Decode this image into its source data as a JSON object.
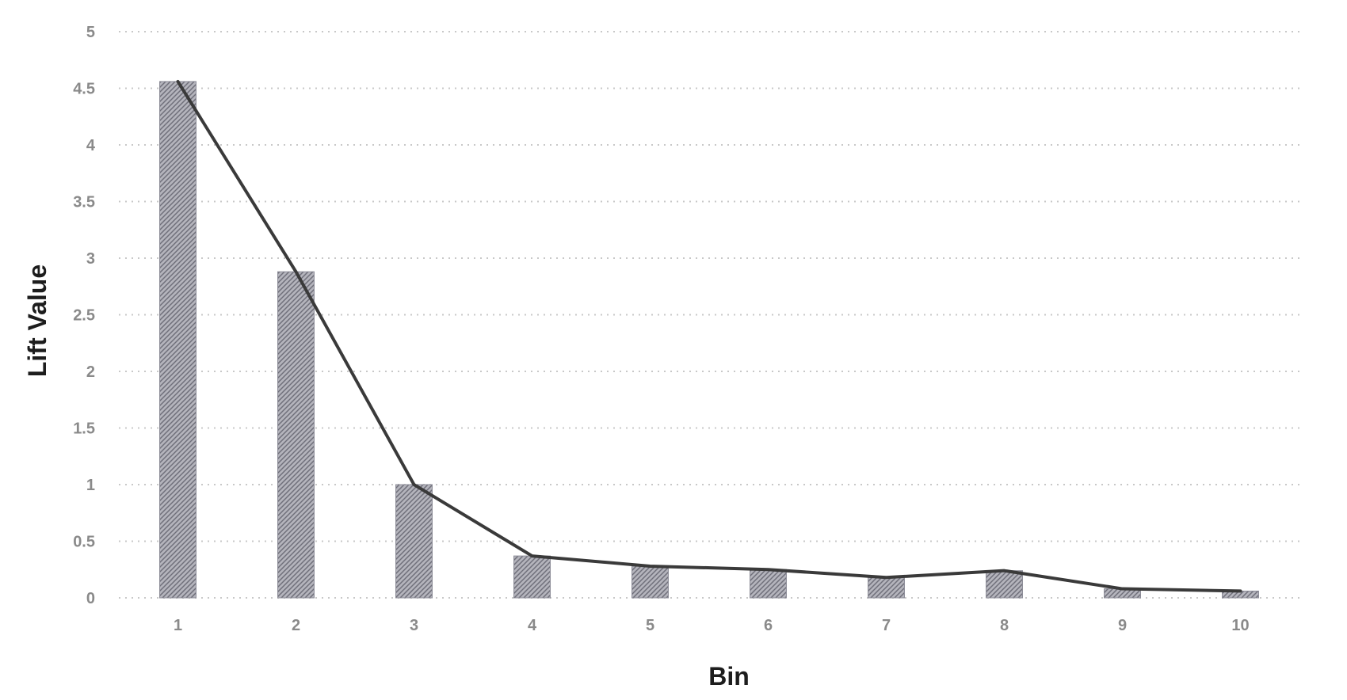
{
  "chart_data": {
    "type": "bar",
    "title": "",
    "xlabel": "Bin",
    "ylabel": "Lift Value",
    "categories": [
      "1",
      "2",
      "3",
      "4",
      "5",
      "6",
      "7",
      "8",
      "9",
      "10"
    ],
    "series": [
      {
        "values": [
          4.56,
          2.88,
          1.0,
          0.37,
          0.28,
          0.25,
          0.18,
          0.24,
          0.08,
          0.06
        ]
      }
    ],
    "line_overlay": true,
    "ylim": [
      0,
      5
    ],
    "yticks": [
      "0",
      "0.5",
      "1",
      "1.5",
      "2",
      "2.5",
      "3",
      "3.5",
      "4",
      "4.5",
      "5"
    ],
    "grid": true,
    "legend": "none",
    "colors": {
      "bar": "#8e8e99",
      "line": "#3a3a3a",
      "grid": "#c8c8c8"
    }
  }
}
